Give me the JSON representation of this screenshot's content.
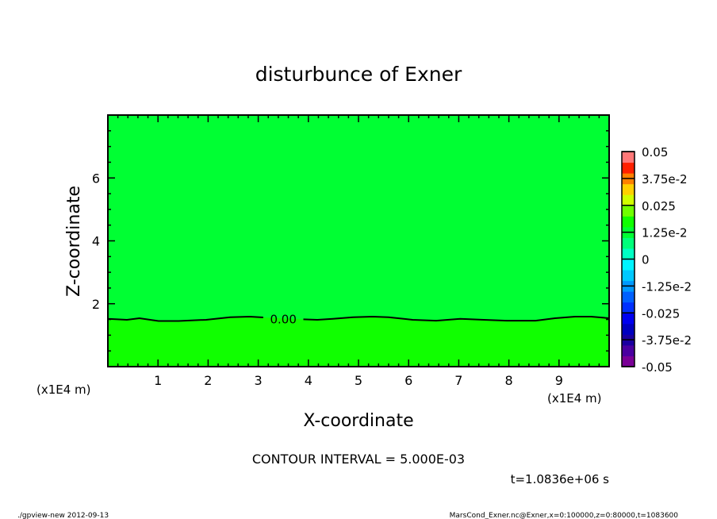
{
  "chart_data": {
    "type": "contour",
    "title": "disturbunce of Exner",
    "xlabel": "X-coordinate",
    "ylabel": "Z-coordinate",
    "x_unit_label": "(x1E4 m)",
    "y_unit_label": "(x1E4 m)",
    "xlim": [
      0,
      10
    ],
    "ylim": [
      0,
      8
    ],
    "xticks": [
      1,
      2,
      3,
      4,
      5,
      6,
      7,
      8,
      9
    ],
    "yticks": [
      2,
      4,
      6
    ],
    "contour_interval_label": "CONTOUR INTERVAL = 5.000E-03",
    "time_label": "t=1.0836e+06 s",
    "contour_line": {
      "label": "0.00",
      "points": [
        [
          0,
          1.52
        ],
        [
          0.38,
          1.49
        ],
        [
          0.63,
          1.54
        ],
        [
          1.01,
          1.45
        ],
        [
          1.41,
          1.45
        ],
        [
          1.96,
          1.49
        ],
        [
          2.44,
          1.57
        ],
        [
          2.83,
          1.59
        ],
        [
          3.62,
          1.52
        ],
        [
          4.18,
          1.49
        ],
        [
          4.49,
          1.52
        ],
        [
          4.89,
          1.57
        ],
        [
          5.28,
          1.59
        ],
        [
          5.6,
          1.57
        ],
        [
          6.08,
          1.49
        ],
        [
          6.55,
          1.46
        ],
        [
          7.03,
          1.52
        ],
        [
          7.5,
          1.49
        ],
        [
          7.97,
          1.46
        ],
        [
          8.53,
          1.46
        ],
        [
          8.92,
          1.54
        ],
        [
          9.32,
          1.59
        ],
        [
          9.64,
          1.59
        ],
        [
          10,
          1.54
        ]
      ]
    },
    "fill_above": "#00ff33",
    "fill_below": "#10ff00",
    "colorbar": {
      "range": [
        -0.05,
        0.05
      ],
      "tick_labels": [
        "-0.05",
        "-3.75e-2",
        "-0.025",
        "-1.25e-2",
        "0",
        "1.25e-2",
        "0.025",
        "3.75e-2",
        "0.05"
      ],
      "colors": [
        "#7a0096",
        "#4a00a0",
        "#1a00a0",
        "#0000c0",
        "#0000f0",
        "#0030ff",
        "#0060ff",
        "#0098ff",
        "#00c8ff",
        "#00f4ff",
        "#00ffc4",
        "#00ff7a",
        "#00ff33",
        "#10ff00",
        "#70ff00",
        "#d0ff00",
        "#ffd000",
        "#ff8000",
        "#ff2000",
        "#ff7878"
      ]
    }
  },
  "footer": {
    "left": "./gpview-new  2012-09-13",
    "right": "MarsCond_Exner.nc@Exner,x=0:100000,z=0:80000,t=1083600"
  }
}
